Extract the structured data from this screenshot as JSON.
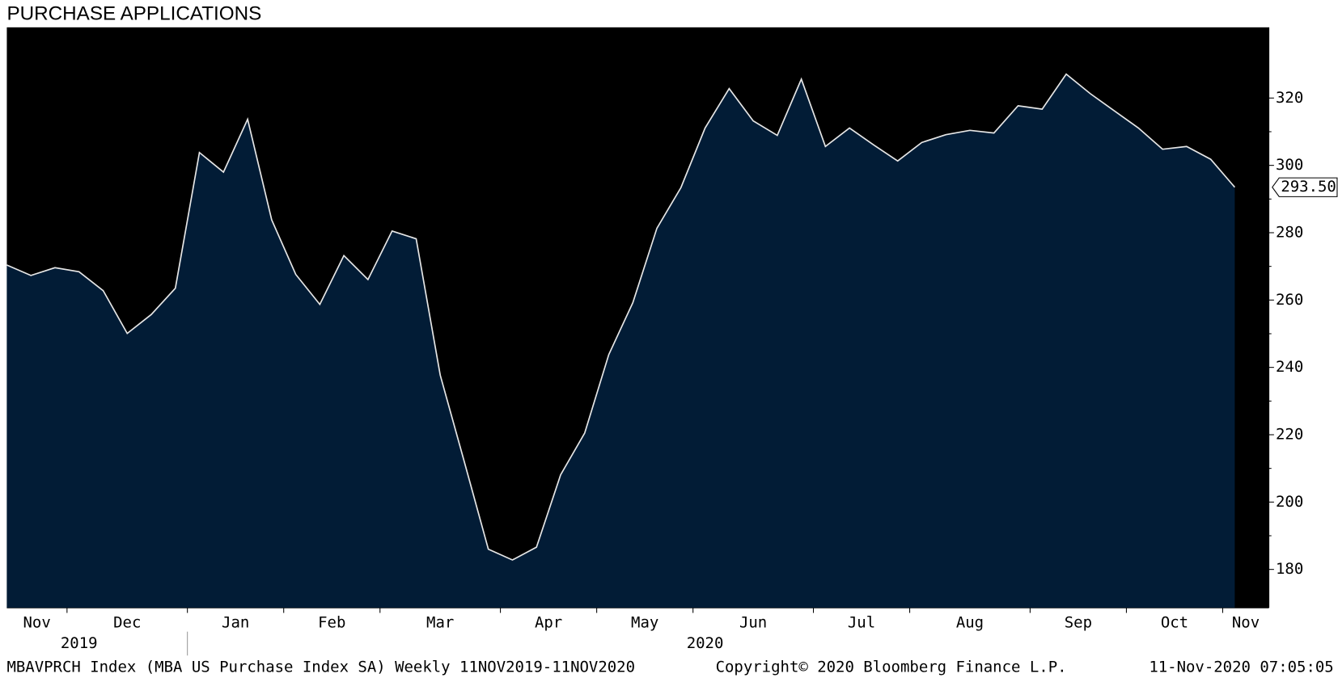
{
  "chart_data": {
    "type": "area",
    "title": "PURCHASE APPLICATIONS",
    "categories": [
      "Nov",
      null,
      null,
      "Dec",
      null,
      null,
      null,
      null,
      "Jan",
      null,
      null,
      null,
      "Feb",
      null,
      null,
      null,
      "Mar",
      null,
      null,
      null,
      null,
      "Apr",
      null,
      null,
      null,
      "May",
      null,
      null,
      null,
      "Jun",
      null,
      null,
      null,
      null,
      "Jul",
      null,
      null,
      null,
      "Aug",
      null,
      null,
      null,
      null,
      "Sep",
      null,
      null,
      null,
      "Oct",
      null,
      null,
      null,
      "Nov"
    ],
    "year_labels": [
      "2019",
      "2020"
    ],
    "series": [
      {
        "name": "MBAVPRCH Index",
        "color": "#e6e6e6",
        "fill_color": "#021c36",
        "values": [
          270.4,
          267.3,
          269.6,
          268.4,
          262.8,
          250.1,
          255.7,
          263.5,
          303.8,
          298.0,
          313.7,
          283.8,
          267.6,
          258.7,
          273.2,
          266.1,
          280.5,
          278.2,
          237.7,
          212.0,
          186.0,
          182.8,
          186.6,
          208.1,
          220.5,
          243.8,
          259.2,
          281.3,
          293.4,
          311.1,
          322.8,
          313.2,
          308.9,
          325.6,
          305.6,
          311.1,
          306.1,
          301.3,
          306.8,
          309.1,
          310.4,
          309.6,
          317.7,
          316.7,
          327.1,
          321.3,
          316.2,
          311.1,
          304.8,
          305.6,
          301.8,
          293.5
        ]
      }
    ],
    "last_value_label": "293.50",
    "ylim": [
      168.6,
      341
    ],
    "yticks": [
      180,
      200,
      220,
      240,
      260,
      280,
      300,
      320
    ],
    "background": "#000000",
    "footer": [
      "MBAVPRCH Index (MBA US Purchase Index SA)  Weekly 11NOV2019-11NOV2020",
      "Copyright© 2020 Bloomberg Finance L.P.",
      "11-Nov-2020 07:05:05"
    ]
  }
}
